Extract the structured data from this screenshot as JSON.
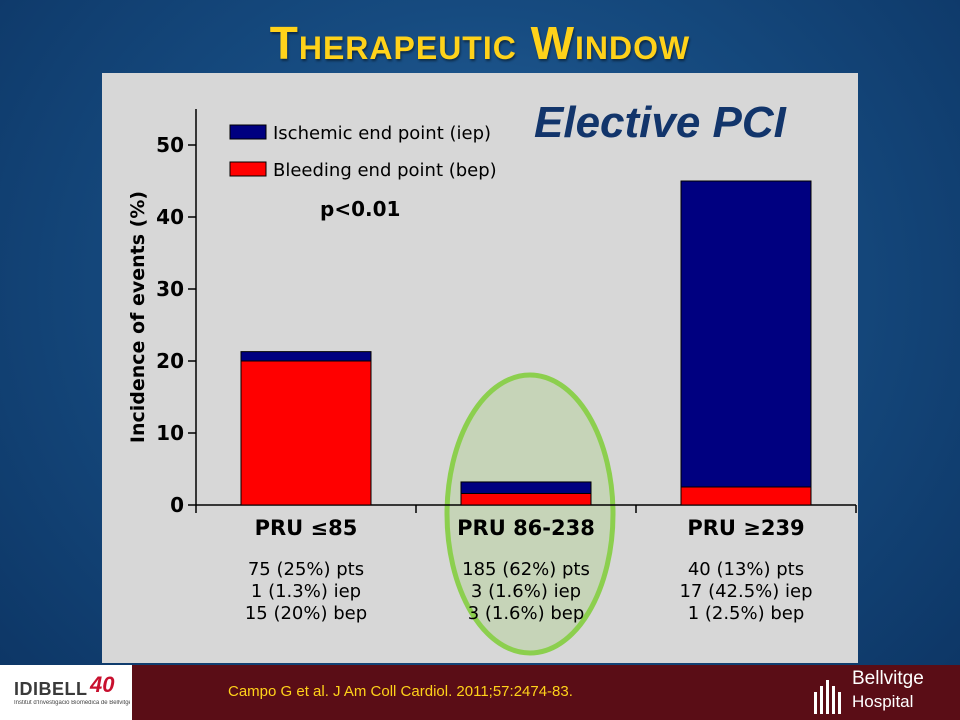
{
  "slide": {
    "title": "Therapeutic Window",
    "chart_subtitle": "Elective PCI",
    "citation": "Campo G et al. J Am Coll Cardiol. 2011;57:2474-83.",
    "footer_left_logo": "IDIBELL",
    "footer_left_logo_number": "40",
    "footer_left_logo_sub": "Institut d'Investigació Biomèdica de Bellvitge",
    "footer_right_logo_line1": "Bellvitge",
    "footer_right_logo_line2": "Hospital",
    "colors": {
      "title": "#ffd21a",
      "citation": "#ffd21a",
      "footer_bg": "#5a0d16",
      "highlight": "#8ccf4e"
    }
  },
  "chart_data": {
    "type": "bar",
    "stacked": true,
    "title": "Elective PCI",
    "ylabel": "Incidence of events (%)",
    "xlabel": "",
    "ylim": [
      0,
      55
    ],
    "yticks": [
      0,
      10,
      20,
      30,
      40,
      50
    ],
    "grid": false,
    "legend_position": "top-left",
    "categories": [
      "PRU ≤85",
      "PRU 86-238",
      "PRU ≥239"
    ],
    "series": [
      {
        "name": "Bleeding end point (bep)",
        "color": "#ff0000",
        "values": [
          20,
          1.6,
          2.5
        ]
      },
      {
        "name": "Ischemic end point (iep)",
        "color": "#000080",
        "values": [
          1.3,
          1.6,
          42.5
        ]
      }
    ],
    "legend_order": [
      "Ischemic end point (iep)",
      "Bleeding end point (bep)"
    ],
    "annotation": "p<0.01",
    "category_details": [
      [
        "75 (25%) pts",
        "1 (1.3%) iep",
        "15 (20%) bep"
      ],
      [
        "185 (62%) pts",
        "3 (1.6%) iep",
        "3 (1.6%) bep"
      ],
      [
        "40 (13%) pts",
        "17 (42.5%) iep",
        "1 (2.5%) bep"
      ]
    ],
    "highlighted_category": 1
  }
}
